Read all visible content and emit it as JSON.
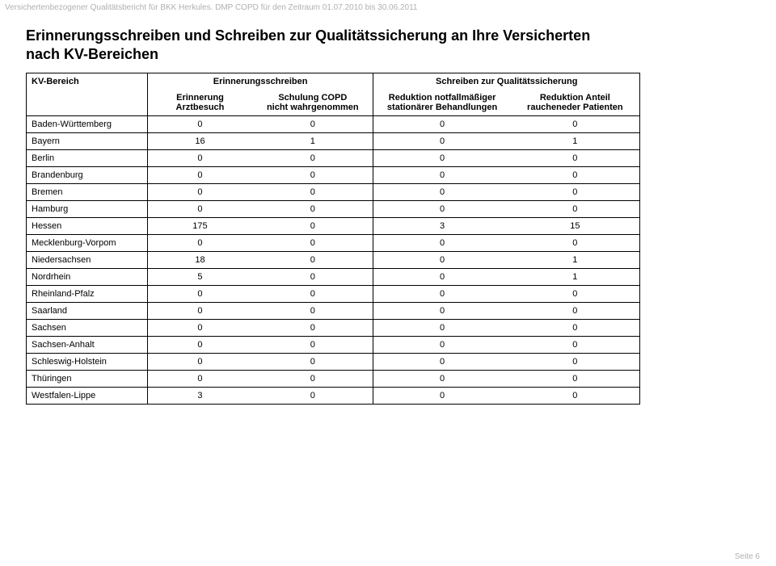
{
  "header_line": "Versichertenbezogener Qualitätsbericht für BKK Herkules. DMP COPD für den Zeitraum 01.07.2010 bis 30.06.2011",
  "title_line1": "Erinnerungsschreiben und Schreiben zur Qualitätssicherung an Ihre Versicherten",
  "title_line2": "nach KV-Bereichen",
  "table": {
    "h_kv": "KV-Bereich",
    "h_group1": "Erinnerungsschreiben",
    "h_group2": "Schreiben zur Qualitätssicherung",
    "h_sub_a1": "Erinnerung",
    "h_sub_a2": "Arztbesuch",
    "h_sub_b1": "Schulung COPD",
    "h_sub_b2": "nicht wahrgenommen",
    "h_sub_c1": "Reduktion notfallmäßiger",
    "h_sub_c2": "stationärer Behandlungen",
    "h_sub_d1": "Reduktion Anteil",
    "h_sub_d2": "raucheneder Patienten",
    "rows": [
      {
        "label": "Baden-Württemberg",
        "a": "0",
        "b": "0",
        "c": "0",
        "d": "0"
      },
      {
        "label": "Bayern",
        "a": "16",
        "b": "1",
        "c": "0",
        "d": "1"
      },
      {
        "label": "Berlin",
        "a": "0",
        "b": "0",
        "c": "0",
        "d": "0"
      },
      {
        "label": "Brandenburg",
        "a": "0",
        "b": "0",
        "c": "0",
        "d": "0"
      },
      {
        "label": "Bremen",
        "a": "0",
        "b": "0",
        "c": "0",
        "d": "0"
      },
      {
        "label": "Hamburg",
        "a": "0",
        "b": "0",
        "c": "0",
        "d": "0"
      },
      {
        "label": "Hessen",
        "a": "175",
        "b": "0",
        "c": "3",
        "d": "15"
      },
      {
        "label": "Mecklenburg-Vorpom",
        "a": "0",
        "b": "0",
        "c": "0",
        "d": "0"
      },
      {
        "label": "Niedersachsen",
        "a": "18",
        "b": "0",
        "c": "0",
        "d": "1"
      },
      {
        "label": "Nordrhein",
        "a": "5",
        "b": "0",
        "c": "0",
        "d": "1"
      },
      {
        "label": "Rheinland-Pfalz",
        "a": "0",
        "b": "0",
        "c": "0",
        "d": "0"
      },
      {
        "label": "Saarland",
        "a": "0",
        "b": "0",
        "c": "0",
        "d": "0"
      },
      {
        "label": "Sachsen",
        "a": "0",
        "b": "0",
        "c": "0",
        "d": "0"
      },
      {
        "label": "Sachsen-Anhalt",
        "a": "0",
        "b": "0",
        "c": "0",
        "d": "0"
      },
      {
        "label": "Schleswig-Holstein",
        "a": "0",
        "b": "0",
        "c": "0",
        "d": "0"
      },
      {
        "label": "Thüringen",
        "a": "0",
        "b": "0",
        "c": "0",
        "d": "0"
      },
      {
        "label": "Westfalen-Lippe",
        "a": "3",
        "b": "0",
        "c": "0",
        "d": "0"
      }
    ]
  },
  "footer": "Seite 6"
}
